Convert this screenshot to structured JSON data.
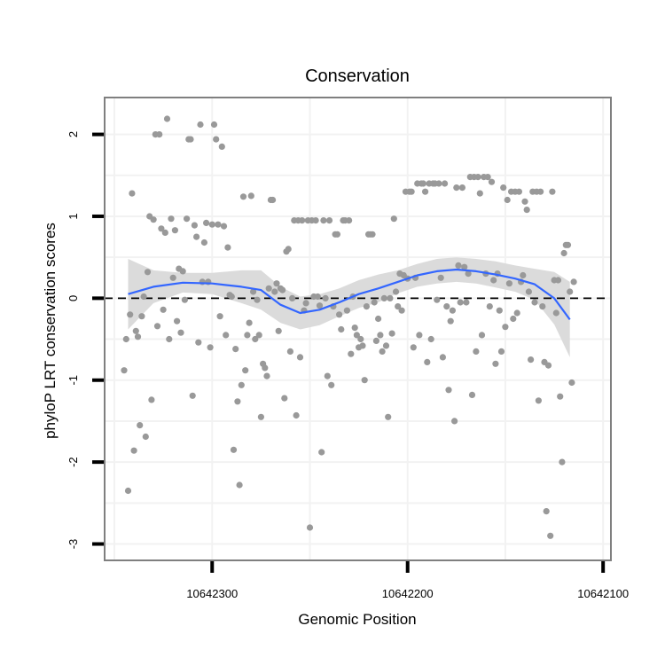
{
  "chart_data": {
    "type": "scatter",
    "title": "Conservation",
    "xlabel": "Genomic Position",
    "ylabel": "phyloP LRT conservation scores",
    "x_reversed": true,
    "xlim": [
      10642355,
      10642096
    ],
    "ylim": [
      -3.2,
      2.45
    ],
    "x_ticks": [
      10642300,
      10642200,
      10642100
    ],
    "x_tick_labels": [
      "10642300",
      "10642200",
      "10642100"
    ],
    "y_ticks": [
      -3,
      -2,
      -1,
      0,
      1,
      2
    ],
    "y_tick_labels": [
      "-3",
      "-2",
      "-1",
      "0",
      "1",
      "2"
    ],
    "reference_line": {
      "y": 0,
      "style": "dashed"
    },
    "grid": true,
    "legend": "none",
    "colors": {
      "points": "#999999",
      "smooth": "#3366ff",
      "ribbon": "#d9d9d9",
      "panel_border": "#7f7f7f",
      "grid": "#f2f2f2",
      "refline": "#000000"
    },
    "series": [
      {
        "kind": "points",
        "values": [
          [
            10642345,
            -0.88
          ],
          [
            10642344,
            -0.5
          ],
          [
            10642343,
            -2.35
          ],
          [
            10642342,
            -0.2
          ],
          [
            10642341,
            1.28
          ],
          [
            10642340,
            -1.86
          ],
          [
            10642339,
            -0.4
          ],
          [
            10642338,
            -0.47
          ],
          [
            10642337,
            -1.55
          ],
          [
            10642336,
            -0.22
          ],
          [
            10642335,
            0.02
          ],
          [
            10642334,
            -1.69
          ],
          [
            10642333,
            0.32
          ],
          [
            10642332,
            1.0
          ],
          [
            10642331,
            -1.24
          ],
          [
            10642330,
            0.96
          ],
          [
            10642329,
            2.0
          ],
          [
            10642328,
            -0.34
          ],
          [
            10642327,
            2.0
          ],
          [
            10642326,
            0.85
          ],
          [
            10642325,
            -0.14
          ],
          [
            10642324,
            0.8
          ],
          [
            10642323,
            2.19
          ],
          [
            10642322,
            -0.5
          ],
          [
            10642321,
            0.97
          ],
          [
            10642320,
            0.25
          ],
          [
            10642319,
            0.83
          ],
          [
            10642318,
            -0.28
          ],
          [
            10642317,
            0.36
          ],
          [
            10642316,
            -0.42
          ],
          [
            10642315,
            0.33
          ],
          [
            10642314,
            -0.02
          ],
          [
            10642313,
            0.97
          ],
          [
            10642312,
            1.94
          ],
          [
            10642311,
            1.94
          ],
          [
            10642310,
            -1.19
          ],
          [
            10642309,
            0.89
          ],
          [
            10642308,
            0.75
          ],
          [
            10642307,
            -0.54
          ],
          [
            10642306,
            2.12
          ],
          [
            10642305,
            0.2
          ],
          [
            10642304,
            0.68
          ],
          [
            10642303,
            0.92
          ],
          [
            10642302,
            0.2
          ],
          [
            10642301,
            -0.6
          ],
          [
            10642300,
            0.9
          ],
          [
            10642299,
            2.12
          ],
          [
            10642298,
            1.94
          ],
          [
            10642297,
            0.9
          ],
          [
            10642296,
            -0.22
          ],
          [
            10642295,
            1.85
          ],
          [
            10642294,
            0.88
          ],
          [
            10642293,
            -0.45
          ],
          [
            10642292,
            0.62
          ],
          [
            10642291,
            0.04
          ],
          [
            10642290,
            0.02
          ],
          [
            10642289,
            -1.85
          ],
          [
            10642288,
            -0.62
          ],
          [
            10642287,
            -1.26
          ],
          [
            10642286,
            -2.28
          ],
          [
            10642285,
            -1.06
          ],
          [
            10642284,
            1.24
          ],
          [
            10642283,
            -0.88
          ],
          [
            10642282,
            -0.45
          ],
          [
            10642281,
            -0.3
          ],
          [
            10642280,
            1.25
          ],
          [
            10642279,
            0.08
          ],
          [
            10642278,
            -0.5
          ],
          [
            10642277,
            -0.02
          ],
          [
            10642276,
            -0.45
          ],
          [
            10642275,
            -1.45
          ],
          [
            10642274,
            -0.8
          ],
          [
            10642273,
            -0.85
          ],
          [
            10642272,
            -0.95
          ],
          [
            10642271,
            0.12
          ],
          [
            10642270,
            1.2
          ],
          [
            10642269,
            1.2
          ],
          [
            10642268,
            0.08
          ],
          [
            10642267,
            0.18
          ],
          [
            10642266,
            -0.4
          ],
          [
            10642265,
            0.12
          ],
          [
            10642264,
            0.1
          ],
          [
            10642263,
            -1.22
          ],
          [
            10642262,
            0.57
          ],
          [
            10642261,
            0.6
          ],
          [
            10642260,
            -0.65
          ],
          [
            10642259,
            0.0
          ],
          [
            10642258,
            0.95
          ],
          [
            10642257,
            -1.43
          ],
          [
            10642256,
            0.95
          ],
          [
            10642255,
            -0.72
          ],
          [
            10642254,
            0.95
          ],
          [
            10642253,
            -0.15
          ],
          [
            10642252,
            -0.06
          ],
          [
            10642251,
            0.95
          ],
          [
            10642250,
            -2.8
          ],
          [
            10642249,
            0.95
          ],
          [
            10642248,
            0.02
          ],
          [
            10642247,
            0.95
          ],
          [
            10642246,
            0.02
          ],
          [
            10642245,
            -0.09
          ],
          [
            10642244,
            -1.88
          ],
          [
            10642243,
            0.95
          ],
          [
            10642242,
            0.0
          ],
          [
            10642241,
            -0.95
          ],
          [
            10642240,
            0.95
          ],
          [
            10642239,
            -1.06
          ],
          [
            10642238,
            -0.1
          ],
          [
            10642237,
            0.78
          ],
          [
            10642236,
            0.78
          ],
          [
            10642235,
            -0.2
          ],
          [
            10642234,
            -0.38
          ],
          [
            10642233,
            0.95
          ],
          [
            10642232,
            0.95
          ],
          [
            10642231,
            -0.15
          ],
          [
            10642230,
            0.95
          ],
          [
            10642229,
            -0.68
          ],
          [
            10642228,
            0.02
          ],
          [
            10642227,
            -0.36
          ],
          [
            10642226,
            -0.45
          ],
          [
            10642225,
            -0.6
          ],
          [
            10642224,
            -0.5
          ],
          [
            10642223,
            -0.58
          ],
          [
            10642222,
            -1.0
          ],
          [
            10642221,
            -0.1
          ],
          [
            10642220,
            0.78
          ],
          [
            10642219,
            0.78
          ],
          [
            10642218,
            0.78
          ],
          [
            10642217,
            -0.05
          ],
          [
            10642216,
            -0.52
          ],
          [
            10642215,
            -0.25
          ],
          [
            10642214,
            -0.45
          ],
          [
            10642213,
            -0.65
          ],
          [
            10642212,
            0.0
          ],
          [
            10642211,
            -0.58
          ],
          [
            10642210,
            -1.45
          ],
          [
            10642209,
            0.0
          ],
          [
            10642208,
            -0.43
          ],
          [
            10642207,
            0.97
          ],
          [
            10642206,
            0.08
          ],
          [
            10642205,
            -0.1
          ],
          [
            10642204,
            0.3
          ],
          [
            10642203,
            -0.15
          ],
          [
            10642202,
            0.28
          ],
          [
            10642201,
            1.3
          ],
          [
            10642200,
            0.24
          ],
          [
            10642199,
            1.3
          ],
          [
            10642198,
            1.3
          ],
          [
            10642197,
            -0.6
          ],
          [
            10642196,
            0.25
          ],
          [
            10642195,
            1.4
          ],
          [
            10642194,
            -0.45
          ],
          [
            10642193,
            1.4
          ],
          [
            10642192,
            1.4
          ],
          [
            10642191,
            1.3
          ],
          [
            10642190,
            -0.78
          ],
          [
            10642189,
            1.4
          ],
          [
            10642188,
            -0.5
          ],
          [
            10642187,
            1.4
          ],
          [
            10642186,
            1.4
          ],
          [
            10642185,
            -0.02
          ],
          [
            10642184,
            1.4
          ],
          [
            10642183,
            0.25
          ],
          [
            10642182,
            -0.72
          ],
          [
            10642181,
            1.4
          ],
          [
            10642180,
            -0.1
          ],
          [
            10642179,
            -1.12
          ],
          [
            10642178,
            -0.28
          ],
          [
            10642177,
            -0.15
          ],
          [
            10642176,
            -1.5
          ],
          [
            10642175,
            1.35
          ],
          [
            10642174,
            0.4
          ],
          [
            10642173,
            -0.05
          ],
          [
            10642172,
            1.35
          ],
          [
            10642171,
            0.38
          ],
          [
            10642170,
            -0.05
          ],
          [
            10642169,
            0.3
          ],
          [
            10642168,
            1.48
          ],
          [
            10642167,
            -1.18
          ],
          [
            10642166,
            1.48
          ],
          [
            10642165,
            -0.65
          ],
          [
            10642164,
            1.48
          ],
          [
            10642163,
            1.28
          ],
          [
            10642162,
            -0.45
          ],
          [
            10642161,
            1.48
          ],
          [
            10642160,
            0.3
          ],
          [
            10642159,
            1.48
          ],
          [
            10642158,
            -0.1
          ],
          [
            10642157,
            1.42
          ],
          [
            10642156,
            0.22
          ],
          [
            10642155,
            -0.8
          ],
          [
            10642154,
            0.3
          ],
          [
            10642153,
            -0.15
          ],
          [
            10642152,
            -0.65
          ],
          [
            10642151,
            1.35
          ],
          [
            10642150,
            -0.35
          ],
          [
            10642149,
            1.2
          ],
          [
            10642148,
            0.18
          ],
          [
            10642147,
            1.3
          ],
          [
            10642146,
            -0.25
          ],
          [
            10642145,
            1.3
          ],
          [
            10642144,
            -0.18
          ],
          [
            10642143,
            1.3
          ],
          [
            10642142,
            0.2
          ],
          [
            10642141,
            0.28
          ],
          [
            10642140,
            1.18
          ],
          [
            10642139,
            1.08
          ],
          [
            10642138,
            0.08
          ],
          [
            10642137,
            -0.75
          ],
          [
            10642136,
            1.3
          ],
          [
            10642135,
            -0.05
          ],
          [
            10642134,
            1.3
          ],
          [
            10642133,
            -1.25
          ],
          [
            10642132,
            1.3
          ],
          [
            10642131,
            -0.1
          ],
          [
            10642130,
            -0.78
          ],
          [
            10642129,
            -2.6
          ],
          [
            10642128,
            -0.82
          ],
          [
            10642127,
            -2.9
          ],
          [
            10642126,
            1.3
          ],
          [
            10642125,
            0.22
          ],
          [
            10642124,
            -0.18
          ],
          [
            10642123,
            0.22
          ],
          [
            10642122,
            -1.2
          ],
          [
            10642121,
            -2.0
          ],
          [
            10642120,
            0.55
          ],
          [
            10642119,
            0.65
          ],
          [
            10642118,
            0.65
          ],
          [
            10642117,
            0.08
          ],
          [
            10642116,
            -1.03
          ],
          [
            10642115,
            0.2
          ]
        ]
      },
      {
        "kind": "smooth",
        "name": "",
        "x": [
          10642343,
          10642330,
          10642315,
          10642300,
          10642285,
          10642275,
          10642265,
          10642255,
          10642245,
          10642235,
          10642225,
          10642215,
          10642205,
          10642195,
          10642185,
          10642175,
          10642165,
          10642155,
          10642145,
          10642135,
          10642125,
          10642117
        ],
        "y": [
          0.05,
          0.14,
          0.19,
          0.18,
          0.14,
          0.1,
          -0.08,
          -0.18,
          -0.14,
          -0.05,
          0.05,
          0.12,
          0.2,
          0.28,
          0.33,
          0.35,
          0.33,
          0.29,
          0.24,
          0.17,
          0.0,
          -0.26
        ],
        "ribbon_lower": [
          -0.38,
          -0.06,
          0.07,
          0.05,
          -0.06,
          -0.14,
          -0.3,
          -0.38,
          -0.33,
          -0.22,
          -0.12,
          -0.05,
          0.06,
          0.14,
          0.18,
          0.2,
          0.18,
          0.13,
          0.08,
          -0.02,
          -0.32,
          -0.72
        ],
        "ribbon_upper": [
          0.48,
          0.34,
          0.31,
          0.31,
          0.34,
          0.34,
          0.14,
          0.02,
          0.05,
          0.12,
          0.22,
          0.29,
          0.34,
          0.42,
          0.48,
          0.5,
          0.48,
          0.45,
          0.4,
          0.36,
          0.32,
          0.2
        ]
      }
    ]
  }
}
